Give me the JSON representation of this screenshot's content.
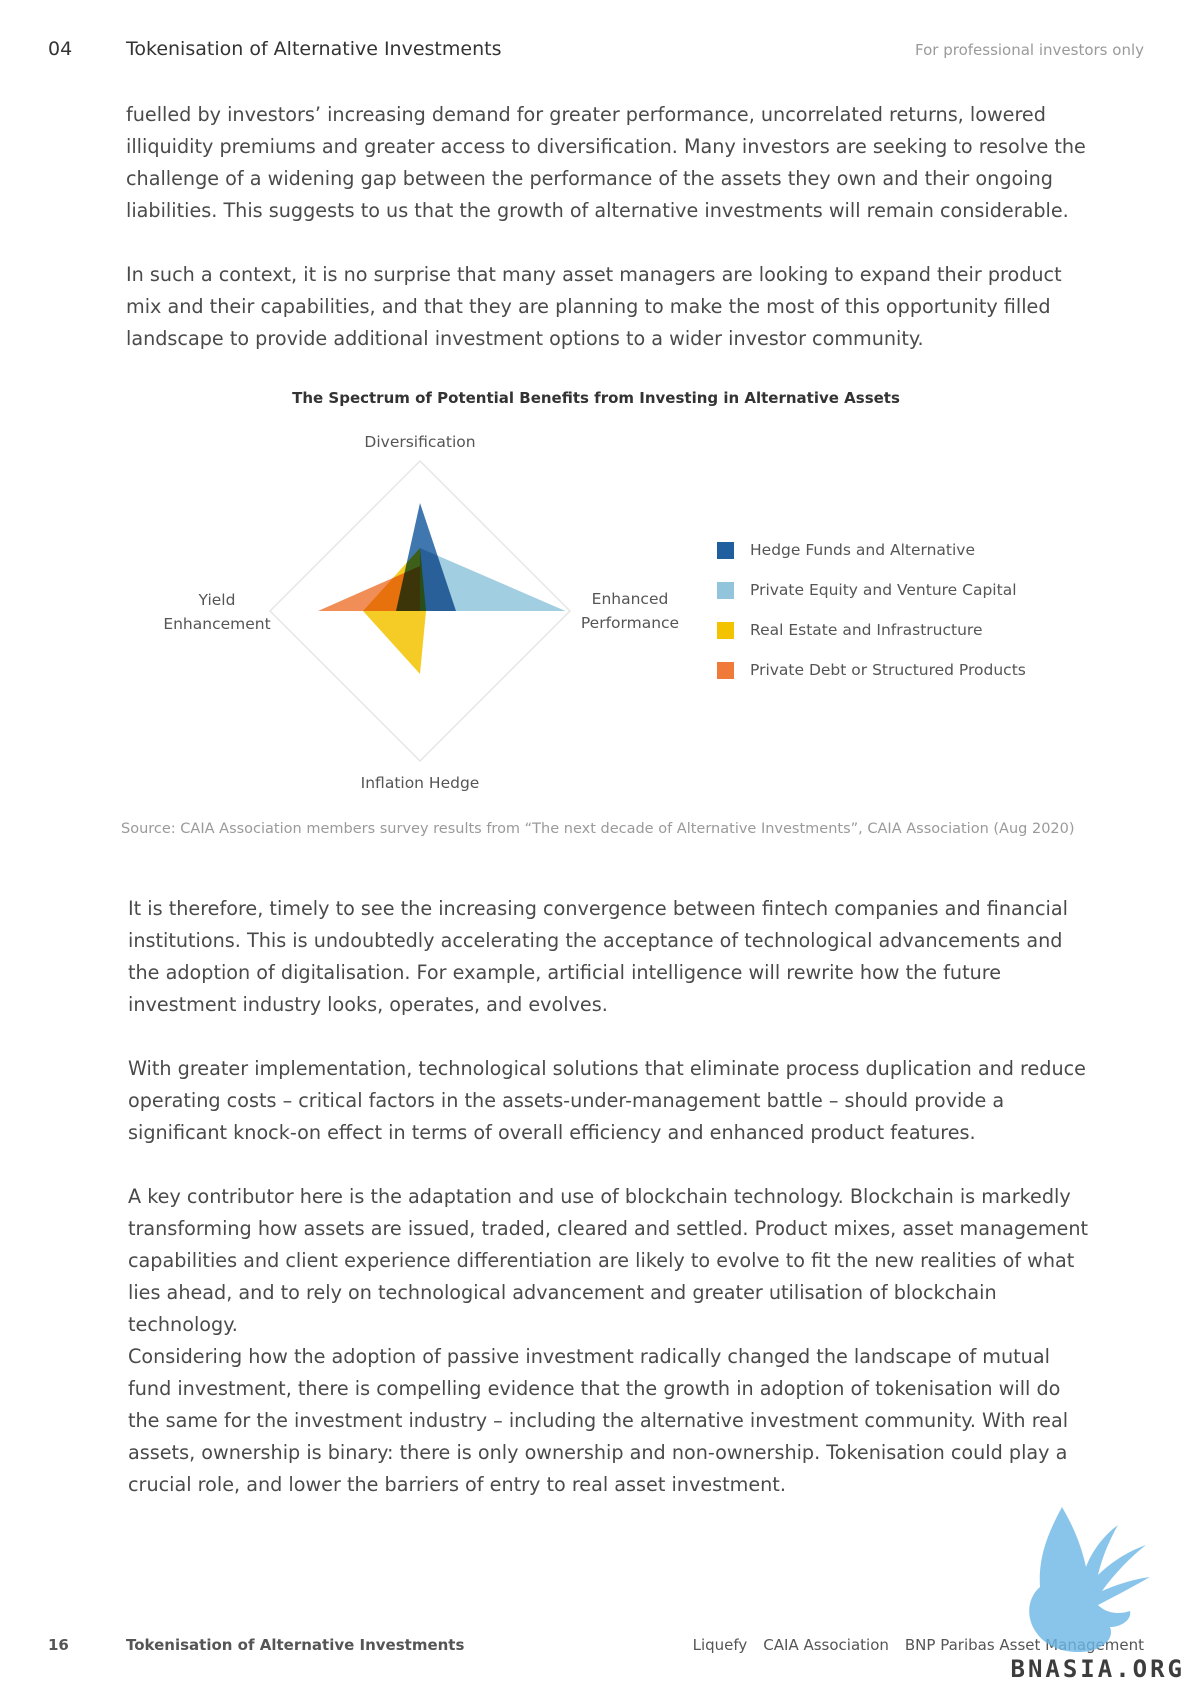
{
  "header": {
    "section_number": "04",
    "title": "Tokenisation of Alternative Investments",
    "note": "For professional investors only"
  },
  "paragraphs_top": [
    "fuelled by investors’ increasing demand for greater performance, uncorrelated returns, lowered illiquidity premiums and greater access to diversification. Many investors are seeking to resolve the challenge of a widening gap between the performance of the assets they own and their ongoing liabilities. This suggests to us that the growth of alternative investments will remain considerable.",
    "In such a context, it is no surprise that many asset managers are looking to expand their product mix and their capabilities, and that they are planning to make the most of this opportunity filled landscape to provide additional investment options to a wider investor community."
  ],
  "chart_data": {
    "type": "radar",
    "title": "The Spectrum of Potential Benefits from Investing in Alternative Assets",
    "axes": [
      "Diversification",
      "Enhanced Performance",
      "Inflation Hedge",
      "Yield Enhancement"
    ],
    "axis_label_lines": [
      [
        "Diversification"
      ],
      [
        "Enhanced",
        "Performance"
      ],
      [
        "Inflation Hedge"
      ],
      [
        "Yield",
        "Enhancement"
      ]
    ],
    "scale_max": 1.0,
    "series": [
      {
        "name": "Hedge Funds and Alternative",
        "color": "#1f5fa0",
        "values": [
          0.72,
          0.24,
          0.0,
          0.16
        ]
      },
      {
        "name": "Private Equity and Venture Capital",
        "color": "#92c5dc",
        "values": [
          0.42,
          0.97,
          0.0,
          0.0
        ]
      },
      {
        "name": "Real Estate and Infrastructure",
        "color": "#f3c300",
        "values": [
          0.42,
          0.04,
          0.42,
          0.38
        ]
      },
      {
        "name": "Private Debt or Structured Products",
        "color": "#ef7a3a",
        "values": [
          0.3,
          0.0,
          0.0,
          0.68
        ]
      }
    ],
    "legend_position": "right"
  },
  "source": "Source: CAIA Association members survey results from “The next decade of Alternative Investments”, CAIA Association (Aug 2020)",
  "paragraphs_bottom": [
    "It is therefore, timely to see the increasing convergence between fintech companies and financial institutions. This is undoubtedly accelerating the acceptance of technological advancements and the adoption of digitalisation. For example, artificial intelligence will rewrite how the future investment industry looks, operates, and evolves.",
    "With greater implementation, technological solutions that eliminate process duplication and reduce operating costs – critical factors in the assets-under-management battle – should provide a significant knock-on effect in terms of overall efficiency and enhanced product features.",
    "A key contributor here is the adaptation and use of blockchain technology. Blockchain is markedly transforming how assets are issued, traded, cleared and settled. Product mixes, asset management capabilities and client experience differentiation are likely to evolve to fit the new realities of what lies ahead, and to rely on technological advancement and greater utilisation of blockchain technology.",
    "Considering how the adoption of passive investment radically changed the landscape of mutual fund investment, there is compelling evidence that the growth in adoption of tokenisation will do the same for the investment industry – including the alternative investment community. With real assets, ownership is binary: there is only ownership and non-ownership. Tokenisation could play a crucial role, and lower the barriers of entry to real asset investment."
  ],
  "footer": {
    "page_number": "16",
    "title": "Tokenisation of Alternative Investments",
    "partners": [
      "Liquefy",
      "CAIA Association",
      "BNP Paribas Asset Management"
    ]
  },
  "watermark": {
    "text": "ABNASIA.ORG",
    "color": "#6bb6e6"
  }
}
